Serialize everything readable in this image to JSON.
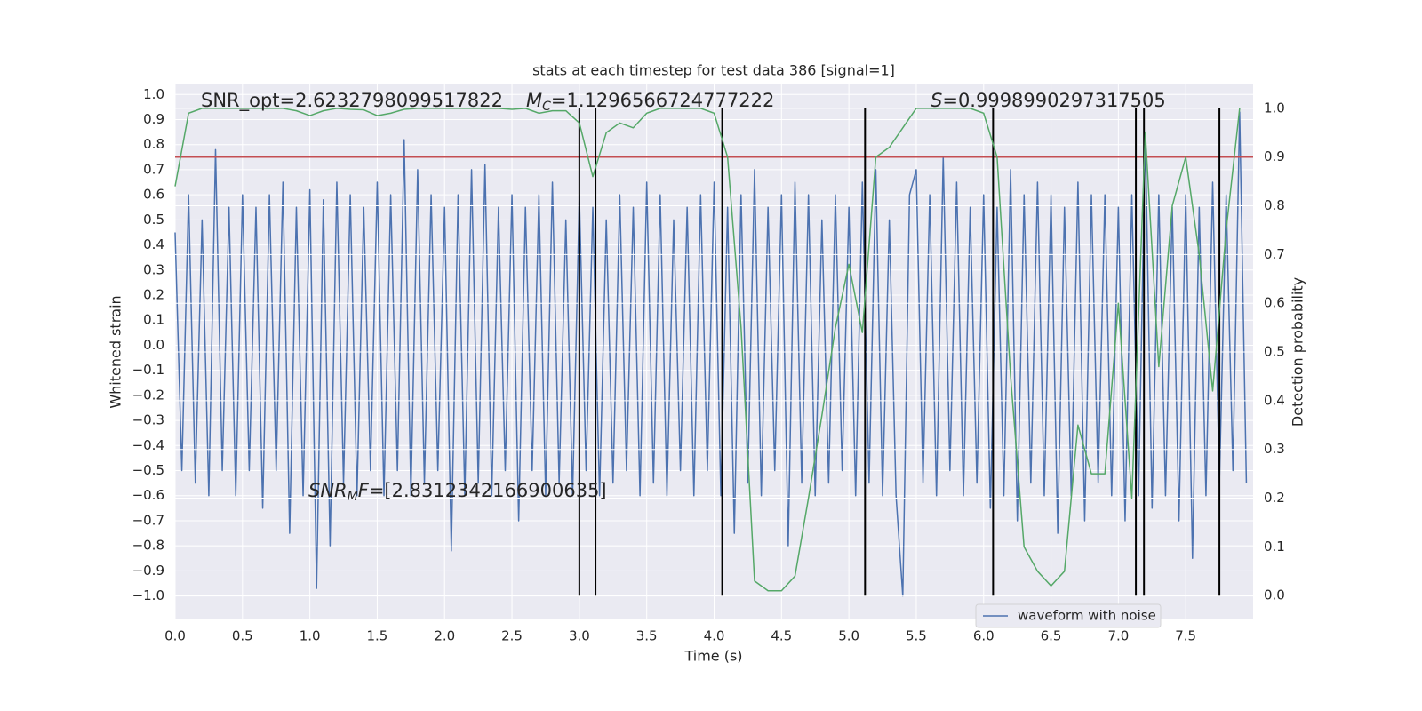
{
  "chart_data": {
    "type": "line",
    "title": "stats at each timestep for test data 386 [signal=1]",
    "xlabel": "Time (s)",
    "ylabel": "Whitened strain",
    "y2label": "Detection probability",
    "xlim": [
      0,
      8.0
    ],
    "ylim": [
      -1.09,
      1.04
    ],
    "y2lim": [
      -0.047,
      1.049
    ],
    "xticks": [
      {
        "value": 0,
        "label": "0.0"
      },
      0.5,
      {
        "value": 1,
        "label": "1.0"
      },
      1.5,
      {
        "value": 2,
        "label": "2.0"
      },
      2.5,
      {
        "value": 3,
        "label": "3.0"
      },
      3.5,
      {
        "value": 4,
        "label": "4.0"
      },
      4.5,
      {
        "value": 5,
        "label": "5.0"
      },
      5.5,
      {
        "value": 6,
        "label": "6.0"
      },
      6.5,
      {
        "value": 7,
        "label": "7.0"
      },
      7.5
    ],
    "yticks": [
      {
        "value": -1,
        "label": "−1.0"
      },
      {
        "value": -0.9,
        "label": "−0.9"
      },
      {
        "value": -0.8,
        "label": "−0.8"
      },
      {
        "value": -0.7,
        "label": "−0.7"
      },
      {
        "value": -0.6,
        "label": "−0.6"
      },
      {
        "value": -0.5,
        "label": "−0.5"
      },
      {
        "value": -0.4,
        "label": "−0.4"
      },
      {
        "value": -0.3,
        "label": "−0.3"
      },
      {
        "value": -0.2,
        "label": "−0.2"
      },
      {
        "value": -0.1,
        "label": "−0.1"
      },
      {
        "value": 0,
        "label": "0.0"
      },
      0.1,
      0.2,
      0.3,
      0.4,
      0.5,
      0.6,
      0.7,
      0.8,
      0.9,
      {
        "value": 1,
        "label": "1.0"
      }
    ],
    "y2ticks": [
      {
        "value": 0,
        "label": "0.0"
      },
      0.1,
      0.2,
      0.3,
      0.4,
      0.5,
      0.6,
      0.7,
      0.8,
      0.9,
      {
        "value": 1,
        "label": "1.0"
      }
    ],
    "grid": true,
    "legend": "lower right",
    "series": [
      {
        "name": "waveform with noise",
        "color": "#4c72b0",
        "x": [
          0,
          0.05,
          0.1,
          0.15,
          0.2,
          0.25,
          0.3,
          0.35,
          0.4,
          0.45,
          0.5,
          0.55,
          0.6,
          0.65,
          0.7,
          0.75,
          0.8,
          0.85,
          0.9,
          0.95,
          1,
          1.05,
          1.1,
          1.15,
          1.2,
          1.25,
          1.3,
          1.35,
          1.4,
          1.45,
          1.5,
          1.55,
          1.6,
          1.65,
          1.7,
          1.75,
          1.8,
          1.85,
          1.9,
          1.95,
          2,
          2.05,
          2.1,
          2.15,
          2.2,
          2.25,
          2.3,
          2.35,
          2.4,
          2.45,
          2.5,
          2.55,
          2.6,
          2.65,
          2.7,
          2.75,
          2.8,
          2.85,
          2.9,
          2.95,
          3,
          3.05,
          3.1,
          3.15,
          3.2,
          3.25,
          3.3,
          3.35,
          3.4,
          3.45,
          3.5,
          3.55,
          3.6,
          3.65,
          3.7,
          3.75,
          3.8,
          3.85,
          3.9,
          3.95,
          4,
          4.05,
          4.1,
          4.15,
          4.2,
          4.25,
          4.3,
          4.35,
          4.4,
          4.45,
          4.5,
          4.55,
          4.6,
          4.65,
          4.7,
          4.75,
          4.8,
          4.85,
          4.9,
          4.95,
          5,
          5.05,
          5.1,
          5.15,
          5.2,
          5.25,
          5.3,
          5.35,
          5.4,
          5.45,
          5.5,
          5.55,
          5.6,
          5.65,
          5.7,
          5.75,
          5.8,
          5.85,
          5.9,
          5.95,
          6,
          6.05,
          6.1,
          6.15,
          6.2,
          6.25,
          6.3,
          6.35,
          6.4,
          6.45,
          6.5,
          6.55,
          6.6,
          6.65,
          6.7,
          6.75,
          6.8,
          6.85,
          6.9,
          6.95,
          7,
          7.05,
          7.1,
          7.15,
          7.2,
          7.25,
          7.3,
          7.35,
          7.4,
          7.45,
          7.5,
          7.55,
          7.6,
          7.65,
          7.7,
          7.75,
          7.8,
          7.85,
          7.9,
          7.95
        ],
        "values": [
          0.45,
          -0.5,
          0.6,
          -0.55,
          0.5,
          -0.6,
          0.78,
          -0.5,
          0.55,
          -0.6,
          0.6,
          -0.5,
          0.55,
          -0.65,
          0.6,
          -0.5,
          0.65,
          -0.75,
          0.55,
          -0.6,
          0.62,
          -0.97,
          0.58,
          -0.8,
          0.65,
          -0.55,
          0.6,
          -0.6,
          0.55,
          -0.5,
          0.65,
          -0.6,
          0.6,
          -0.5,
          0.82,
          -0.6,
          0.7,
          -0.55,
          0.6,
          -0.5,
          0.55,
          -0.82,
          0.6,
          -0.6,
          0.7,
          -0.55,
          0.72,
          -0.6,
          0.55,
          -0.5,
          0.6,
          -0.7,
          0.55,
          -0.5,
          0.6,
          -0.6,
          0.65,
          -0.55,
          0.5,
          -0.6,
          0.6,
          -0.5,
          0.55,
          -0.6,
          0.5,
          -0.55,
          0.6,
          -0.5,
          0.55,
          -0.6,
          0.65,
          -0.55,
          0.6,
          -0.6,
          0.5,
          -0.5,
          0.55,
          -0.6,
          0.6,
          -0.5,
          0.65,
          -0.6,
          0.55,
          -0.75,
          0.6,
          -0.55,
          0.7,
          -0.6,
          0.55,
          -0.5,
          0.6,
          -0.8,
          0.65,
          -0.55,
          0.6,
          -0.6,
          0.5,
          -0.55,
          0.6,
          -0.5,
          0.55,
          -0.6,
          0.65,
          -0.55,
          0.7,
          -0.6,
          0.5,
          -0.6,
          -1.0,
          0.6,
          0.7,
          -0.55,
          0.6,
          -0.6,
          0.75,
          -0.5,
          0.65,
          -0.6,
          0.55,
          -0.55,
          0.6,
          -0.65,
          0.55,
          -0.6,
          0.7,
          -0.7,
          0.6,
          -0.55,
          0.65,
          -0.6,
          0.6,
          -0.75,
          0.55,
          -0.6,
          0.65,
          -0.7,
          0.6,
          -0.55,
          0.6,
          -0.6,
          0.55,
          -0.7,
          0.6,
          -0.6,
          0.85,
          -0.65,
          0.6,
          -0.6,
          0.55,
          -0.7,
          0.6,
          -0.85,
          0.55,
          -0.6,
          0.65,
          -0.55,
          0.6,
          -0.5,
          0.93,
          -0.55
        ]
      },
      {
        "color": "#55a868",
        "axis": "y2",
        "x": [
          0,
          0.1,
          0.2,
          0.3,
          0.4,
          0.5,
          0.6,
          0.7,
          0.8,
          0.9,
          1,
          1.1,
          1.2,
          1.3,
          1.4,
          1.5,
          1.6,
          1.7,
          1.8,
          1.9,
          2,
          2.1,
          2.2,
          2.3,
          2.4,
          2.5,
          2.6,
          2.7,
          2.8,
          2.9,
          3,
          3.1,
          3.2,
          3.3,
          3.4,
          3.5,
          3.6,
          3.7,
          3.8,
          3.9,
          4,
          4.1,
          4.2,
          4.3,
          4.4,
          4.5,
          4.6,
          4.7,
          4.8,
          4.9,
          5,
          5.1,
          5.2,
          5.3,
          5.4,
          5.5,
          5.6,
          5.7,
          5.8,
          5.9,
          6,
          6.1,
          6.2,
          6.3,
          6.4,
          6.5,
          6.6,
          6.7,
          6.8,
          6.9,
          7,
          7.1,
          7.2,
          7.3,
          7.4,
          7.5,
          7.6,
          7.7,
          7.8,
          7.9
        ],
        "values": [
          0.84,
          0.99,
          1.0,
          1.0,
          1.0,
          1.0,
          1.0,
          1.0,
          1.0,
          0.995,
          0.985,
          0.995,
          1.0,
          0.998,
          0.997,
          0.985,
          0.99,
          0.998,
          1.0,
          1.0,
          1.0,
          1.0,
          1.0,
          1.0,
          1.0,
          0.998,
          1.0,
          0.99,
          0.995,
          0.995,
          0.97,
          0.86,
          0.95,
          0.97,
          0.96,
          0.99,
          1.0,
          1.0,
          1.0,
          1.0,
          0.99,
          0.9,
          0.55,
          0.03,
          0.01,
          0.01,
          0.04,
          0.2,
          0.37,
          0.55,
          0.68,
          0.54,
          0.9,
          0.92,
          0.96,
          1.0,
          1.0,
          1.0,
          1.0,
          1.0,
          0.99,
          0.9,
          0.45,
          0.1,
          0.05,
          0.02,
          0.05,
          0.35,
          0.25,
          0.25,
          0.6,
          0.2,
          0.95,
          0.47,
          0.8,
          0.9,
          0.7,
          0.42,
          0.75,
          1.0
        ]
      }
    ],
    "hline": {
      "value": 0.9,
      "axis": "y2",
      "color": "#c44e52"
    },
    "vlines": [
      3.0,
      3.12,
      4.06,
      5.12,
      6.07,
      7.13,
      7.19,
      7.75
    ],
    "vline_color": "#000000",
    "annotations": [
      [
        "SNR_opt=2.6232798099517822"
      ],
      [
        "M",
        "C",
        "=1.1296566724777222"
      ],
      [
        "S",
        "=0.9998990297317505"
      ],
      [
        "SNR",
        "M",
        "F",
        "=[2.8312342166900635]"
      ]
    ]
  }
}
